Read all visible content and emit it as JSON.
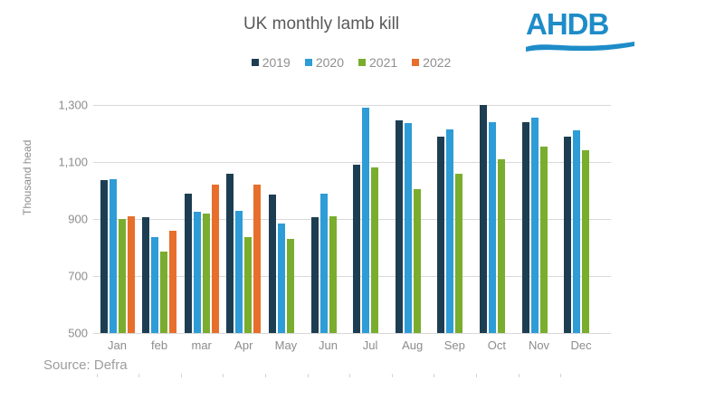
{
  "header": {
    "title": "UK monthly lamb kill",
    "logo_text": "AHDB"
  },
  "footer": {
    "source": "Source: Defra"
  },
  "colors": {
    "series_2019": "#1d3e52",
    "series_2020": "#2e9cd6",
    "series_2021": "#7aad2e",
    "series_2022": "#e76f2c",
    "gridline": "#d9d9d9",
    "axis_text": "#8c8c8c",
    "title_text": "#595959",
    "logo_blue": "#1e8cc8"
  },
  "chart_data": {
    "type": "bar",
    "title": "UK monthly lamb kill",
    "xlabel": "",
    "ylabel": "Thousand head",
    "ylim": [
      500,
      1300
    ],
    "grid": true,
    "legend_position": "top",
    "y_ticks": [
      "1,300",
      "1,100",
      "900",
      "700",
      "500"
    ],
    "y_tick_values": [
      1300,
      1100,
      900,
      700,
      500
    ],
    "categories": [
      "Jan",
      "feb",
      "mar",
      "Apr",
      "May",
      "Jun",
      "Jul",
      "Aug",
      "Sep",
      "Oct",
      "Nov",
      "Dec"
    ],
    "series": [
      {
        "name": "2019",
        "color": "#1d3e52",
        "values": [
          1035,
          905,
          990,
          1060,
          985,
          905,
          1090,
          1245,
          1190,
          1300,
          1240,
          1190
        ]
      },
      {
        "name": "2020",
        "color": "#2e9cd6",
        "values": [
          1040,
          835,
          925,
          930,
          885,
          990,
          1290,
          1235,
          1215,
          1240,
          1255,
          1210
        ]
      },
      {
        "name": "2021",
        "color": "#7aad2e",
        "values": [
          900,
          785,
          920,
          835,
          830,
          910,
          1080,
          1005,
          1060,
          1110,
          1155,
          1140
        ]
      },
      {
        "name": "2022",
        "color": "#e76f2c",
        "values": [
          910,
          860,
          1020,
          1020,
          null,
          null,
          null,
          null,
          null,
          null,
          null,
          null
        ]
      }
    ]
  }
}
